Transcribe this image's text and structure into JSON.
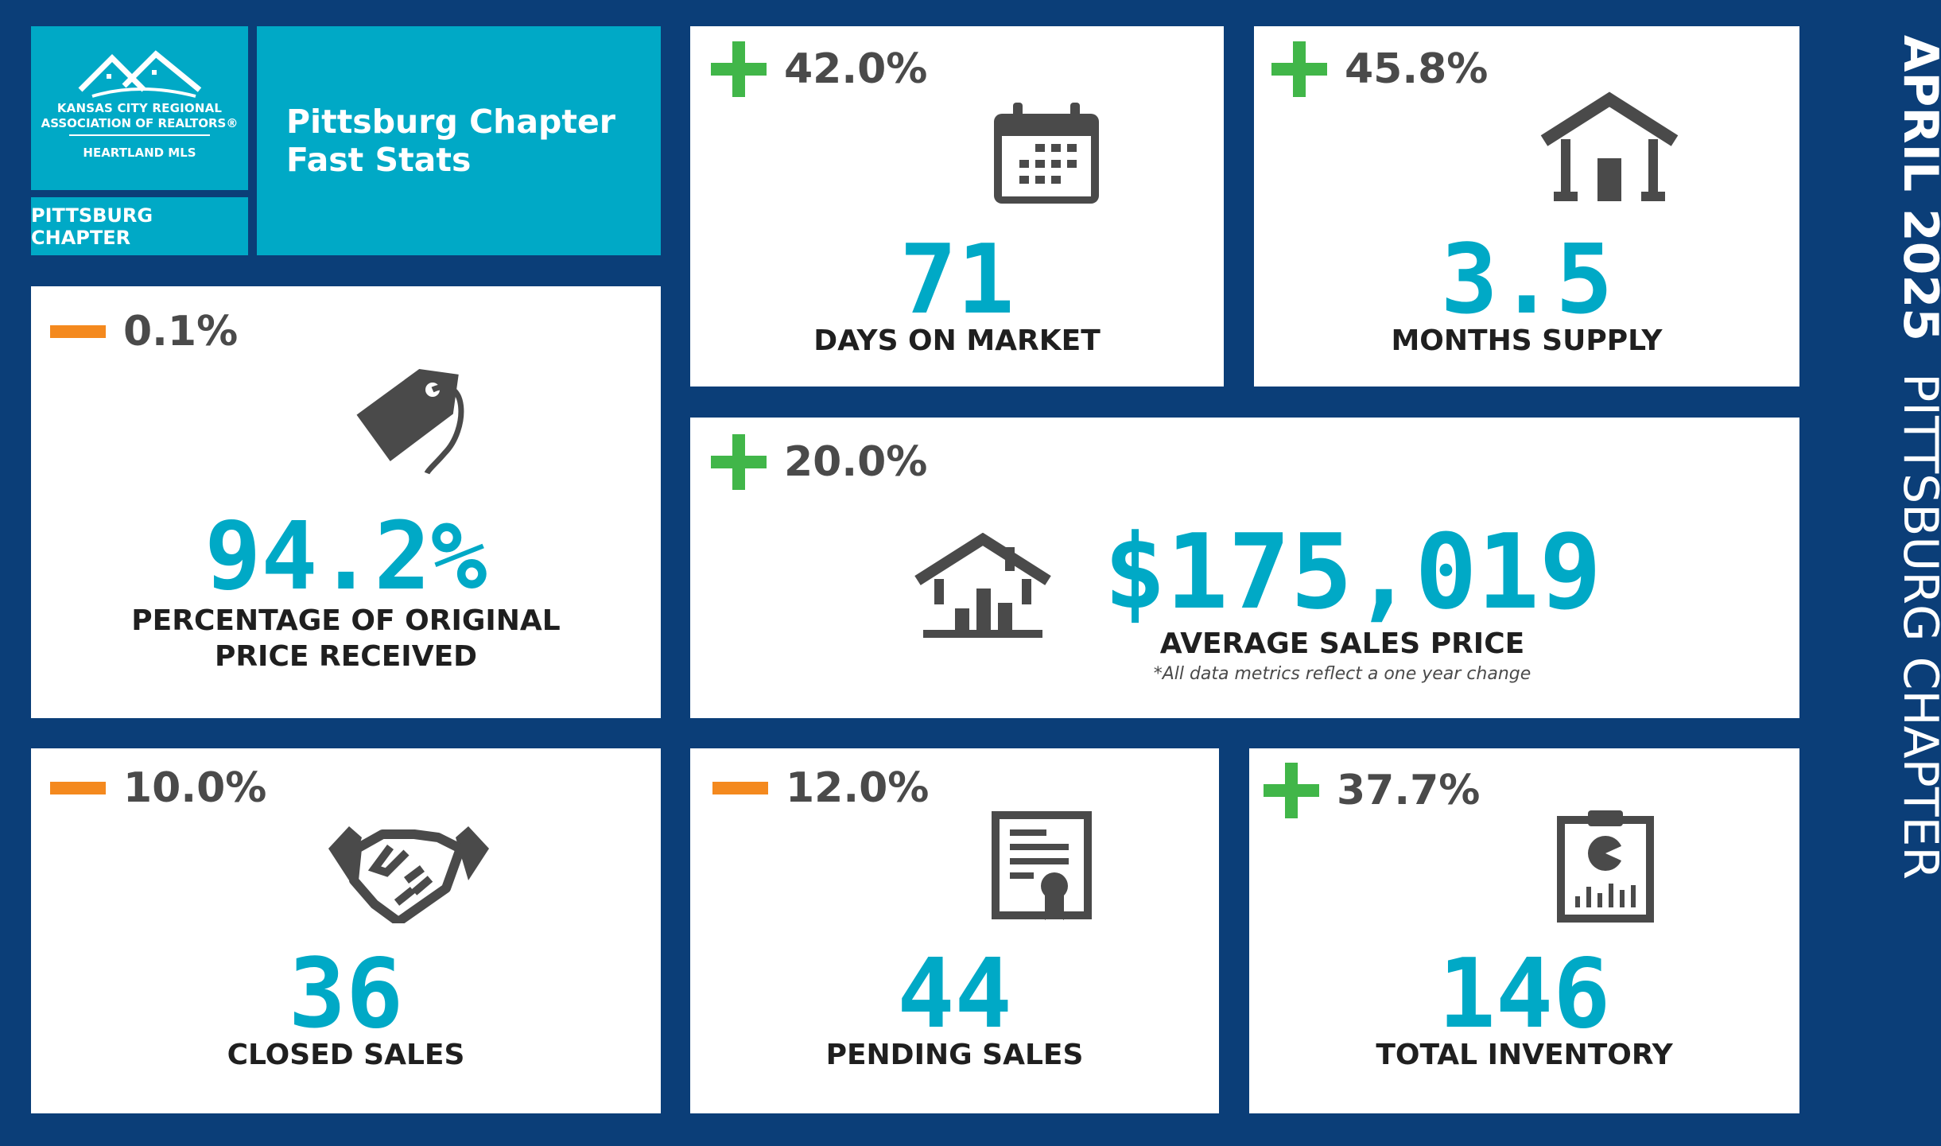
{
  "branding": {
    "org_line1": "KANSAS CITY REGIONAL",
    "org_line2": "ASSOCIATION OF REALTORS®",
    "org_line3": "HEARTLAND MLS",
    "chapter_tag": "PITTSBURG CHAPTER",
    "title_line1": "Pittsburg Chapter",
    "title_line2": "Fast Stats"
  },
  "side_banner": {
    "month": "APRIL 2025",
    "chapter": "PITTSBURG CHAPTER"
  },
  "colors": {
    "background": "#0b3e78",
    "accent": "#00a9c6",
    "increase": "#41b649",
    "decrease": "#f4891e"
  },
  "stats": {
    "days_on_market": {
      "direction": "up",
      "change": "42.0%",
      "value": "71",
      "label": "DAYS ON MARKET",
      "icon": "calendar-icon"
    },
    "months_supply": {
      "direction": "up",
      "change": "45.8%",
      "value": "3.5",
      "label": "MONTHS SUPPLY",
      "icon": "house-icon"
    },
    "pct_original_price": {
      "direction": "down",
      "change": "0.1%",
      "value": "94.2%",
      "label_line1": "PERCENTAGE OF ORIGINAL",
      "label_line2": "PRICE RECEIVED",
      "icon": "price-tag-icon"
    },
    "avg_sales_price": {
      "direction": "up",
      "change": "20.0%",
      "value": "$175,019",
      "label": "AVERAGE SALES PRICE",
      "note": "*All data metrics reflect a one year change",
      "icon": "house-chart-icon"
    },
    "closed_sales": {
      "direction": "down",
      "change": "10.0%",
      "value": "36",
      "label": "CLOSED SALES",
      "icon": "handshake-icon"
    },
    "pending_sales": {
      "direction": "down",
      "change": "12.0%",
      "value": "44",
      "label": "PENDING SALES",
      "icon": "certificate-icon"
    },
    "total_inventory": {
      "direction": "up",
      "change": "37.7%",
      "value": "146",
      "label": "TOTAL INVENTORY",
      "icon": "clipboard-chart-icon"
    }
  }
}
